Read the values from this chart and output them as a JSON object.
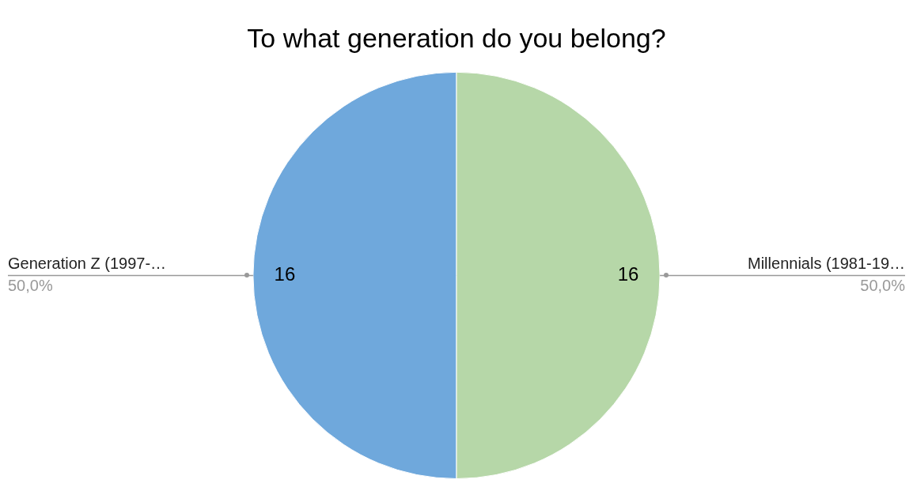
{
  "chart_data": {
    "type": "pie",
    "title": "To what generation do you belong?",
    "categories": [
      "Generation Z (1997-…",
      "Millennials (1981-19…"
    ],
    "values": [
      16,
      16
    ],
    "colors": [
      "#6fa8dc",
      "#b6d7a8"
    ],
    "data_labels": true,
    "annotations": [
      {
        "text": "50,0%",
        "x": "Generation Z (1997-…"
      },
      {
        "text": "50,0%",
        "x": "Millennials (1981-19…"
      }
    ]
  }
}
